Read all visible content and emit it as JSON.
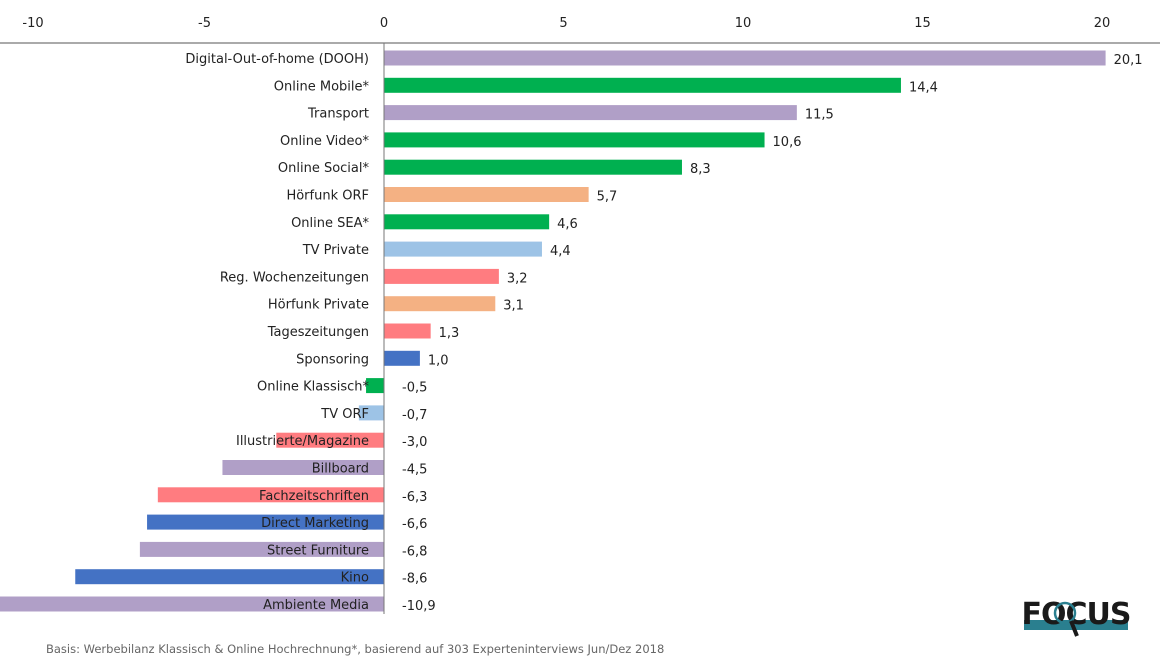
{
  "chart_data": {
    "type": "bar",
    "orientation": "horizontal",
    "xlim": [
      -10.6,
      21.5
    ],
    "xticks": [
      -10,
      -5,
      0,
      5,
      10,
      15,
      20
    ],
    "xtick_labels": [
      "-10",
      "-5",
      "0",
      "5",
      "10",
      "15",
      "20"
    ],
    "categories": [
      "Digital-Out-of-home (DOOH)",
      "Online Mobile*",
      "Transport",
      "Online Video*",
      "Online Social*",
      "Hörfunk ORF",
      "Online SEA*",
      "TV Private",
      "Reg. Wochenzeitungen",
      "Hörfunk Private",
      "Tageszeitungen",
      "Sponsoring",
      "Online Klassisch*",
      "TV ORF",
      "Illustrierte/Magazine",
      "Billboard",
      "Fachzeitschriften",
      "Direct Marketing",
      "Street Furniture",
      "Kino",
      "Ambiente Media"
    ],
    "values": [
      20.1,
      14.4,
      11.5,
      10.6,
      8.3,
      5.7,
      4.6,
      4.4,
      3.2,
      3.1,
      1.3,
      1.0,
      -0.5,
      -0.7,
      -3.0,
      -4.5,
      -6.3,
      -6.6,
      -6.8,
      -8.6,
      -10.9
    ],
    "value_labels": [
      "20,1",
      "14,4",
      "11,5",
      "10,6",
      "8,3",
      "5,7",
      "4,6",
      "4,4",
      "3,2",
      "3,1",
      "1,3",
      "1,0",
      "-0,5",
      "-0,7",
      "-3,0",
      "-4,5",
      "-6,3",
      "-6,6",
      "-6,8",
      "-8,6",
      "-10,9"
    ],
    "colors": [
      "#b09fc7",
      "#00b050",
      "#b09fc7",
      "#00b050",
      "#00b050",
      "#f4b183",
      "#00b050",
      "#9dc3e6",
      "#ff7c80",
      "#f4b183",
      "#ff7c80",
      "#4472c4",
      "#00b050",
      "#9dc3e6",
      "#ff7c80",
      "#b09fc7",
      "#ff7c80",
      "#4472c4",
      "#b09fc7",
      "#4472c4",
      "#b09fc7"
    ],
    "grid": false
  },
  "footnote": "Basis: Werbebilanz Klassisch & Online Hochrechnung*, basierend auf 303 Experteninterviews Jun/Dez 2018",
  "logo": {
    "text": "FOCUS",
    "color_dark": "#1a1a1a",
    "color_accent": "#2a7f8f"
  }
}
